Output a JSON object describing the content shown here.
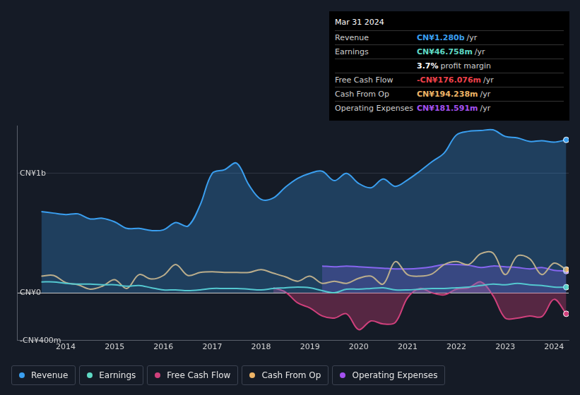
{
  "chart_data": {
    "type": "line",
    "x": [
      2013.5,
      2013.75,
      2014,
      2014.25,
      2014.5,
      2014.75,
      2015,
      2015.25,
      2015.5,
      2015.75,
      2016,
      2016.25,
      2016.5,
      2016.75,
      2017,
      2017.25,
      2017.5,
      2017.75,
      2018,
      2018.25,
      2018.5,
      2018.75,
      2019,
      2019.25,
      2019.5,
      2019.75,
      2020,
      2020.25,
      2020.5,
      2020.75,
      2021,
      2021.25,
      2021.5,
      2021.75,
      2022,
      2022.25,
      2022.5,
      2022.75,
      2023,
      2023.25,
      2023.5,
      2023.75,
      2024,
      2024.25
    ],
    "series": [
      {
        "name": "Revenue",
        "color": "#3a9ff0",
        "values": [
          679,
          667,
          655,
          661,
          618,
          624,
          594,
          539,
          539,
          521,
          527,
          588,
          558,
          733,
          1000,
          1030,
          1085,
          903,
          782,
          794,
          885,
          958,
          1000,
          1018,
          939,
          1000,
          915,
          879,
          952,
          891,
          945,
          1018,
          1097,
          1170,
          1321,
          1352,
          1358,
          1364,
          1309,
          1297,
          1267,
          1273,
          1261,
          1280
        ]
      },
      {
        "name": "Earnings",
        "color": "#5fd9c4",
        "values": [
          91,
          91,
          79,
          73,
          73,
          67,
          67,
          55,
          61,
          42,
          24,
          24,
          18,
          24,
          36,
          36,
          36,
          30,
          24,
          36,
          42,
          48,
          42,
          18,
          0,
          30,
          30,
          36,
          42,
          24,
          24,
          30,
          36,
          36,
          42,
          48,
          61,
          73,
          67,
          79,
          67,
          61,
          48,
          47
        ]
      },
      {
        "name": "Free Cash Flow",
        "color": "#d0407c",
        "values": [
          null,
          null,
          null,
          null,
          null,
          null,
          null,
          null,
          null,
          null,
          null,
          null,
          null,
          null,
          null,
          null,
          null,
          null,
          null,
          42,
          6,
          -85,
          -127,
          -194,
          -212,
          -176,
          -309,
          -236,
          -261,
          -248,
          -42,
          36,
          0,
          -18,
          30,
          42,
          91,
          -24,
          -212,
          -212,
          -194,
          -200,
          -55,
          -176
        ]
      },
      {
        "name": "Cash From Op",
        "color": "#eeb466",
        "values": [
          139,
          145,
          85,
          67,
          30,
          55,
          109,
          36,
          152,
          115,
          145,
          236,
          145,
          170,
          176,
          170,
          170,
          170,
          194,
          164,
          133,
          97,
          139,
          79,
          97,
          79,
          121,
          139,
          73,
          261,
          152,
          139,
          158,
          236,
          261,
          236,
          327,
          333,
          152,
          309,
          285,
          152,
          248,
          194
        ]
      },
      {
        "name": "Operating Expenses",
        "color": "#a451f0",
        "values": [
          null,
          null,
          null,
          null,
          null,
          null,
          null,
          null,
          null,
          null,
          null,
          null,
          null,
          null,
          null,
          null,
          null,
          null,
          null,
          null,
          null,
          null,
          null,
          224,
          218,
          224,
          218,
          212,
          206,
          200,
          200,
          206,
          218,
          236,
          236,
          230,
          212,
          224,
          218,
          212,
          200,
          212,
          188,
          182
        ]
      }
    ],
    "xlim": [
      2013,
      2024.3
    ],
    "xticks": [
      2014,
      2015,
      2016,
      2017,
      2018,
      2019,
      2020,
      2021,
      2022,
      2023,
      2024
    ],
    "ylim": [
      -400,
      1400
    ],
    "yticks": [
      {
        "value": -400,
        "label": "-CN¥400m"
      },
      {
        "value": 0,
        "label": "CN¥0"
      },
      {
        "value": 1000,
        "label": "CN¥1b"
      }
    ],
    "grid": true,
    "legend": "bottom"
  },
  "info_box": {
    "title": "Mar 31 2024",
    "rows": [
      {
        "label": "Revenue",
        "value": "CN¥1.280b",
        "unit": "/yr",
        "color": "#3a9ff0"
      },
      {
        "label": "Earnings",
        "value": "CN¥46.758m",
        "unit": "/yr",
        "color": "#5fd9c4"
      },
      {
        "value": "3.7%",
        "unit": "profit margin",
        "color": "#ffffff"
      },
      {
        "label": "Free Cash Flow",
        "value": "-CN¥176.076m",
        "unit": "/yr",
        "color": "#f0414a"
      },
      {
        "label": "Cash From Op",
        "value": "CN¥194.238m",
        "unit": "/yr",
        "color": "#eeb466"
      },
      {
        "label": "Operating Expenses",
        "value": "CN¥181.591m",
        "unit": "/yr",
        "color": "#a451f0"
      }
    ]
  }
}
